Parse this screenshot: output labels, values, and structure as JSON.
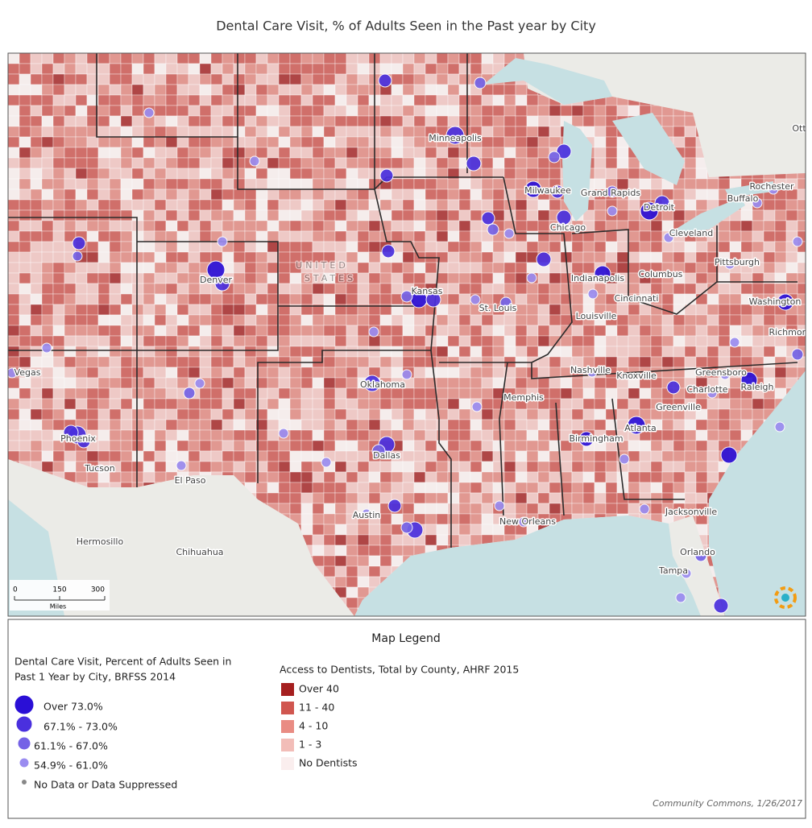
{
  "header": {
    "title": "Dental Care Visit, % of Adults Seen in the Past year by City"
  },
  "map": {
    "labels": [
      "Minneapolis",
      "Milwaukee",
      "Grand Rapids",
      "Detroit",
      "Rochester",
      "Buffalo",
      "Ott",
      "Chicago",
      "Cleveland",
      "Pittsburgh",
      "Denver",
      "UNITED",
      "STATES",
      "Kansas",
      "Indianapolis",
      "Columbus",
      "Cincinnati",
      "St. Louis",
      "Washington",
      "Louisville",
      "Richmond",
      "Vegas",
      "Nashville",
      "Knoxville",
      "Greensboro",
      "Oklahoma",
      "Charlotte",
      "Raleigh",
      "Memphis",
      "Greenville",
      "Phoenix",
      "Birmingham",
      "Atlanta",
      "Dallas",
      "Tucson",
      "El Paso",
      "Austin",
      "Jacksonville",
      "New Orleans",
      "Hermosillo",
      "Chihuahua",
      "Orlando",
      "Tampa"
    ],
    "scale": {
      "ticks": [
        "0",
        "150",
        "300"
      ],
      "unit": "Miles"
    }
  },
  "legend": {
    "title": "Map Legend",
    "cities": {
      "title": [
        "Dental Care Visit, Percent of Adults Seen in",
        "Past 1 Year by City, BRFSS 2014"
      ],
      "items": [
        "Over 73.0%",
        "67.1% - 73.0%",
        "61.1% - 67.0%",
        "54.9% - 61.0%",
        "No Data or Data Suppressed"
      ]
    },
    "counties": {
      "title": "Access to Dentists, Total by County, AHRF 2015",
      "items": [
        "Over 40",
        "11 - 40",
        "4 - 10",
        "1 - 3",
        "No Dentists"
      ]
    }
  },
  "footer": {
    "credit": "Community Commons, 1/26/2017"
  }
}
